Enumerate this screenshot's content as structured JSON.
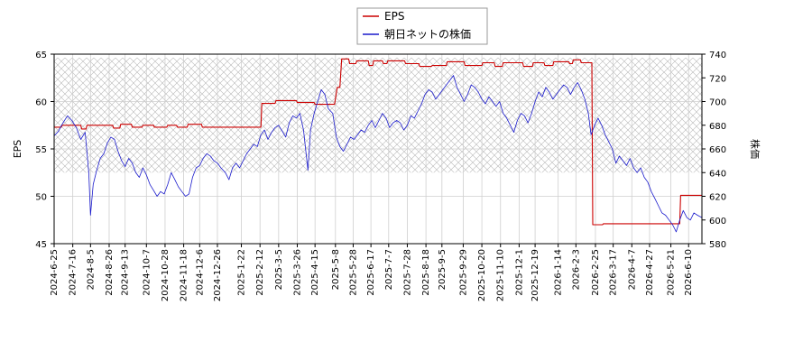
{
  "chart_data": {
    "type": "line",
    "title": "",
    "xlabel": "",
    "ylabel_left": "EPS",
    "ylabel_right": "株価",
    "ylim_left": [
      45,
      65
    ],
    "ylim_right": [
      580,
      740
    ],
    "yticks_left": [
      "45",
      "50",
      "55",
      "60",
      "65"
    ],
    "yticks_right": [
      "580",
      "600",
      "620",
      "640",
      "660",
      "680",
      "700",
      "720",
      "740"
    ],
    "xlim": [
      "2024-06-25",
      "2026-06-25"
    ],
    "x_tick_labels": [
      "2024-6-25",
      "2024-7-16",
      "2024-8-5",
      "2024-8-26",
      "2024-9-13",
      "2024-10-7",
      "2024-10-28",
      "2024-11-18",
      "2024-12-6",
      "2024-12-26",
      "2025-1-22",
      "2025-2-12",
      "2025-3-5",
      "2025-3-26",
      "2025-4-15",
      "2025-5-8",
      "2025-5-28",
      "2025-6-17",
      "2025-7-7",
      "2025-7-28",
      "2025-8-18",
      "2025-9-5",
      "2025-9-29",
      "2025-10-20",
      "2025-11-10",
      "2025-12-1",
      "2025-12-19",
      "2026-1-14",
      "2026-2-3",
      "2026-2-25",
      "2026-3-17",
      "2026-4-7",
      "2026-4-27",
      "2026-5-21",
      "2026-6-10"
    ],
    "grid": true,
    "legend_position": "top-center",
    "band_range_right": [
      640,
      737
    ],
    "series": [
      {
        "name": "EPS",
        "axis": "left",
        "color": "#cc0000",
        "points": [
          [
            "2024-06-25",
            57.3
          ],
          [
            "2024-07-03",
            57.3
          ],
          [
            "2024-07-04",
            57.5
          ],
          [
            "2024-07-25",
            57.5
          ],
          [
            "2024-07-26",
            57.1
          ],
          [
            "2024-07-31",
            57.1
          ],
          [
            "2024-08-01",
            57.5
          ],
          [
            "2024-08-30",
            57.5
          ],
          [
            "2024-08-31",
            57.2
          ],
          [
            "2024-09-07",
            57.2
          ],
          [
            "2024-09-08",
            57.6
          ],
          [
            "2024-09-20",
            57.6
          ],
          [
            "2024-09-21",
            57.3
          ],
          [
            "2024-10-02",
            57.3
          ],
          [
            "2024-10-03",
            57.5
          ],
          [
            "2024-10-15",
            57.5
          ],
          [
            "2024-10-16",
            57.3
          ],
          [
            "2024-10-30",
            57.3
          ],
          [
            "2024-10-31",
            57.5
          ],
          [
            "2024-11-10",
            57.5
          ],
          [
            "2024-11-11",
            57.3
          ],
          [
            "2024-11-22",
            57.3
          ],
          [
            "2024-11-23",
            57.6
          ],
          [
            "2024-12-08",
            57.6
          ],
          [
            "2024-12-09",
            57.3
          ],
          [
            "2025-02-13",
            57.3
          ],
          [
            "2025-02-14",
            59.8
          ],
          [
            "2025-03-01",
            59.8
          ],
          [
            "2025-03-02",
            60.1
          ],
          [
            "2025-03-25",
            60.1
          ],
          [
            "2025-03-26",
            59.9
          ],
          [
            "2025-04-14",
            59.9
          ],
          [
            "2025-04-15",
            59.7
          ],
          [
            "2025-05-07",
            59.7
          ],
          [
            "2025-05-10",
            61.5
          ],
          [
            "2025-05-13",
            61.5
          ],
          [
            "2025-05-15",
            64.5
          ],
          [
            "2025-05-23",
            64.5
          ],
          [
            "2025-05-24",
            64.0
          ],
          [
            "2025-05-31",
            64.0
          ],
          [
            "2025-06-01",
            64.3
          ],
          [
            "2025-06-14",
            64.3
          ],
          [
            "2025-06-15",
            63.8
          ],
          [
            "2025-06-19",
            63.8
          ],
          [
            "2025-06-20",
            64.3
          ],
          [
            "2025-06-30",
            64.3
          ],
          [
            "2025-07-01",
            64.0
          ],
          [
            "2025-07-05",
            64.0
          ],
          [
            "2025-07-06",
            64.3
          ],
          [
            "2025-07-25",
            64.3
          ],
          [
            "2025-07-26",
            64.0
          ],
          [
            "2025-08-10",
            64.0
          ],
          [
            "2025-08-11",
            63.7
          ],
          [
            "2025-08-24",
            63.7
          ],
          [
            "2025-08-25",
            63.8
          ],
          [
            "2025-09-10",
            63.8
          ],
          [
            "2025-09-11",
            64.2
          ],
          [
            "2025-09-30",
            64.2
          ],
          [
            "2025-10-01",
            63.8
          ],
          [
            "2025-10-20",
            63.8
          ],
          [
            "2025-10-21",
            64.1
          ],
          [
            "2025-11-03",
            64.1
          ],
          [
            "2025-11-04",
            63.7
          ],
          [
            "2025-11-12",
            63.7
          ],
          [
            "2025-11-13",
            64.1
          ],
          [
            "2025-12-05",
            64.1
          ],
          [
            "2025-12-06",
            63.7
          ],
          [
            "2025-12-16",
            63.7
          ],
          [
            "2025-12-17",
            64.1
          ],
          [
            "2025-12-29",
            64.1
          ],
          [
            "2025-12-30",
            63.8
          ],
          [
            "2026-01-08",
            63.8
          ],
          [
            "2026-01-09",
            64.2
          ],
          [
            "2026-01-26",
            64.2
          ],
          [
            "2026-01-27",
            64.0
          ],
          [
            "2026-01-30",
            64.0
          ],
          [
            "2026-01-31",
            64.4
          ],
          [
            "2026-02-08",
            64.4
          ],
          [
            "2026-02-09",
            64.1
          ],
          [
            "2026-02-21",
            64.1
          ],
          [
            "2026-02-22",
            47.0
          ],
          [
            "2026-03-05",
            47.0
          ],
          [
            "2026-03-06",
            47.1
          ],
          [
            "2026-05-31",
            47.1
          ],
          [
            "2026-06-01",
            50.1
          ],
          [
            "2026-06-25",
            50.1
          ]
        ]
      },
      {
        "name": "朝日ネットの株価",
        "axis": "right",
        "color": "#1a1acc",
        "points": [
          [
            "2024-06-25",
            671
          ],
          [
            "2024-06-30",
            675
          ],
          [
            "2024-07-05",
            682
          ],
          [
            "2024-07-10",
            688
          ],
          [
            "2024-07-15",
            684
          ],
          [
            "2024-07-20",
            678
          ],
          [
            "2024-07-25",
            668
          ],
          [
            "2024-07-30",
            674
          ],
          [
            "2024-08-03",
            640
          ],
          [
            "2024-08-05",
            604
          ],
          [
            "2024-08-08",
            630
          ],
          [
            "2024-08-12",
            642
          ],
          [
            "2024-08-16",
            652
          ],
          [
            "2024-08-20",
            656
          ],
          [
            "2024-08-24",
            665
          ],
          [
            "2024-08-28",
            670
          ],
          [
            "2024-09-01",
            668
          ],
          [
            "2024-09-05",
            658
          ],
          [
            "2024-09-09",
            650
          ],
          [
            "2024-09-13",
            645
          ],
          [
            "2024-09-17",
            652
          ],
          [
            "2024-09-21",
            648
          ],
          [
            "2024-09-25",
            640
          ],
          [
            "2024-09-29",
            636
          ],
          [
            "2024-10-03",
            644
          ],
          [
            "2024-10-07",
            638
          ],
          [
            "2024-10-11",
            630
          ],
          [
            "2024-10-15",
            625
          ],
          [
            "2024-10-19",
            620
          ],
          [
            "2024-10-23",
            624
          ],
          [
            "2024-10-27",
            622
          ],
          [
            "2024-10-31",
            630
          ],
          [
            "2024-11-04",
            640
          ],
          [
            "2024-11-08",
            634
          ],
          [
            "2024-11-12",
            628
          ],
          [
            "2024-11-16",
            624
          ],
          [
            "2024-11-20",
            620
          ],
          [
            "2024-11-24",
            622
          ],
          [
            "2024-11-28",
            636
          ],
          [
            "2024-12-02",
            644
          ],
          [
            "2024-12-06",
            646
          ],
          [
            "2024-12-10",
            652
          ],
          [
            "2024-12-14",
            656
          ],
          [
            "2024-12-18",
            654
          ],
          [
            "2024-12-22",
            650
          ],
          [
            "2024-12-26",
            648
          ],
          [
            "2024-12-30",
            644
          ],
          [
            "2025-01-04",
            640
          ],
          [
            "2025-01-08",
            634
          ],
          [
            "2025-01-12",
            644
          ],
          [
            "2025-01-16",
            648
          ],
          [
            "2025-01-20",
            644
          ],
          [
            "2025-01-24",
            650
          ],
          [
            "2025-01-28",
            656
          ],
          [
            "2025-02-01",
            660
          ],
          [
            "2025-02-05",
            664
          ],
          [
            "2025-02-09",
            662
          ],
          [
            "2025-02-13",
            672
          ],
          [
            "2025-02-17",
            676
          ],
          [
            "2025-02-21",
            668
          ],
          [
            "2025-02-25",
            674
          ],
          [
            "2025-03-01",
            678
          ],
          [
            "2025-03-05",
            680
          ],
          [
            "2025-03-09",
            675
          ],
          [
            "2025-03-13",
            670
          ],
          [
            "2025-03-17",
            682
          ],
          [
            "2025-03-21",
            688
          ],
          [
            "2025-03-25",
            686
          ],
          [
            "2025-03-29",
            690
          ],
          [
            "2025-04-02",
            676
          ],
          [
            "2025-04-07",
            642
          ],
          [
            "2025-04-10",
            676
          ],
          [
            "2025-04-14",
            690
          ],
          [
            "2025-04-18",
            700
          ],
          [
            "2025-04-22",
            710
          ],
          [
            "2025-04-26",
            706
          ],
          [
            "2025-04-30",
            694
          ],
          [
            "2025-05-05",
            690
          ],
          [
            "2025-05-09",
            670
          ],
          [
            "2025-05-13",
            662
          ],
          [
            "2025-05-17",
            658
          ],
          [
            "2025-05-21",
            664
          ],
          [
            "2025-05-25",
            670
          ],
          [
            "2025-05-29",
            668
          ],
          [
            "2025-06-02",
            672
          ],
          [
            "2025-06-06",
            676
          ],
          [
            "2025-06-10",
            674
          ],
          [
            "2025-06-14",
            680
          ],
          [
            "2025-06-18",
            684
          ],
          [
            "2025-06-22",
            678
          ],
          [
            "2025-06-26",
            684
          ],
          [
            "2025-06-30",
            690
          ],
          [
            "2025-07-04",
            686
          ],
          [
            "2025-07-08",
            678
          ],
          [
            "2025-07-12",
            682
          ],
          [
            "2025-07-16",
            684
          ],
          [
            "2025-07-20",
            682
          ],
          [
            "2025-07-24",
            676
          ],
          [
            "2025-07-28",
            680
          ],
          [
            "2025-08-01",
            688
          ],
          [
            "2025-08-05",
            686
          ],
          [
            "2025-08-09",
            692
          ],
          [
            "2025-08-13",
            698
          ],
          [
            "2025-08-17",
            706
          ],
          [
            "2025-08-21",
            710
          ],
          [
            "2025-08-25",
            708
          ],
          [
            "2025-08-29",
            702
          ],
          [
            "2025-09-02",
            706
          ],
          [
            "2025-09-06",
            710
          ],
          [
            "2025-09-10",
            714
          ],
          [
            "2025-09-14",
            718
          ],
          [
            "2025-09-18",
            722
          ],
          [
            "2025-09-22",
            712
          ],
          [
            "2025-09-26",
            706
          ],
          [
            "2025-09-30",
            700
          ],
          [
            "2025-10-04",
            706
          ],
          [
            "2025-10-08",
            714
          ],
          [
            "2025-10-12",
            712
          ],
          [
            "2025-10-16",
            708
          ],
          [
            "2025-10-20",
            702
          ],
          [
            "2025-10-24",
            698
          ],
          [
            "2025-10-28",
            704
          ],
          [
            "2025-11-01",
            700
          ],
          [
            "2025-11-05",
            696
          ],
          [
            "2025-11-09",
            700
          ],
          [
            "2025-11-13",
            690
          ],
          [
            "2025-11-17",
            686
          ],
          [
            "2025-11-21",
            680
          ],
          [
            "2025-11-25",
            674
          ],
          [
            "2025-11-29",
            684
          ],
          [
            "2025-12-03",
            690
          ],
          [
            "2025-12-07",
            688
          ],
          [
            "2025-12-11",
            682
          ],
          [
            "2025-12-15",
            690
          ],
          [
            "2025-12-19",
            700
          ],
          [
            "2025-12-23",
            708
          ],
          [
            "2025-12-27",
            704
          ],
          [
            "2025-12-31",
            712
          ],
          [
            "2026-01-04",
            708
          ],
          [
            "2026-01-08",
            702
          ],
          [
            "2026-01-12",
            706
          ],
          [
            "2026-01-16",
            710
          ],
          [
            "2026-01-20",
            714
          ],
          [
            "2026-01-24",
            712
          ],
          [
            "2026-01-28",
            706
          ],
          [
            "2026-02-01",
            712
          ],
          [
            "2026-02-05",
            716
          ],
          [
            "2026-02-09",
            710
          ],
          [
            "2026-02-13",
            702
          ],
          [
            "2026-02-17",
            690
          ],
          [
            "2026-02-20",
            672
          ],
          [
            "2026-02-24",
            680
          ],
          [
            "2026-02-28",
            686
          ],
          [
            "2026-03-04",
            680
          ],
          [
            "2026-03-08",
            672
          ],
          [
            "2026-03-12",
            666
          ],
          [
            "2026-03-16",
            660
          ],
          [
            "2026-03-20",
            648
          ],
          [
            "2026-03-24",
            654
          ],
          [
            "2026-03-28",
            650
          ],
          [
            "2026-04-01",
            646
          ],
          [
            "2026-04-05",
            652
          ],
          [
            "2026-04-09",
            644
          ],
          [
            "2026-04-13",
            640
          ],
          [
            "2026-04-17",
            644
          ],
          [
            "2026-04-21",
            636
          ],
          [
            "2026-04-25",
            632
          ],
          [
            "2026-04-29",
            624
          ],
          [
            "2026-05-03",
            618
          ],
          [
            "2026-05-07",
            612
          ],
          [
            "2026-05-11",
            606
          ],
          [
            "2026-05-15",
            604
          ],
          [
            "2026-05-19",
            600
          ],
          [
            "2026-05-23",
            596
          ],
          [
            "2026-05-27",
            590
          ],
          [
            "2026-05-31",
            600
          ],
          [
            "2026-06-04",
            608
          ],
          [
            "2026-06-08",
            602
          ],
          [
            "2026-06-12",
            600
          ],
          [
            "2026-06-16",
            606
          ],
          [
            "2026-06-20",
            604
          ],
          [
            "2026-06-25",
            602
          ]
        ]
      }
    ]
  }
}
